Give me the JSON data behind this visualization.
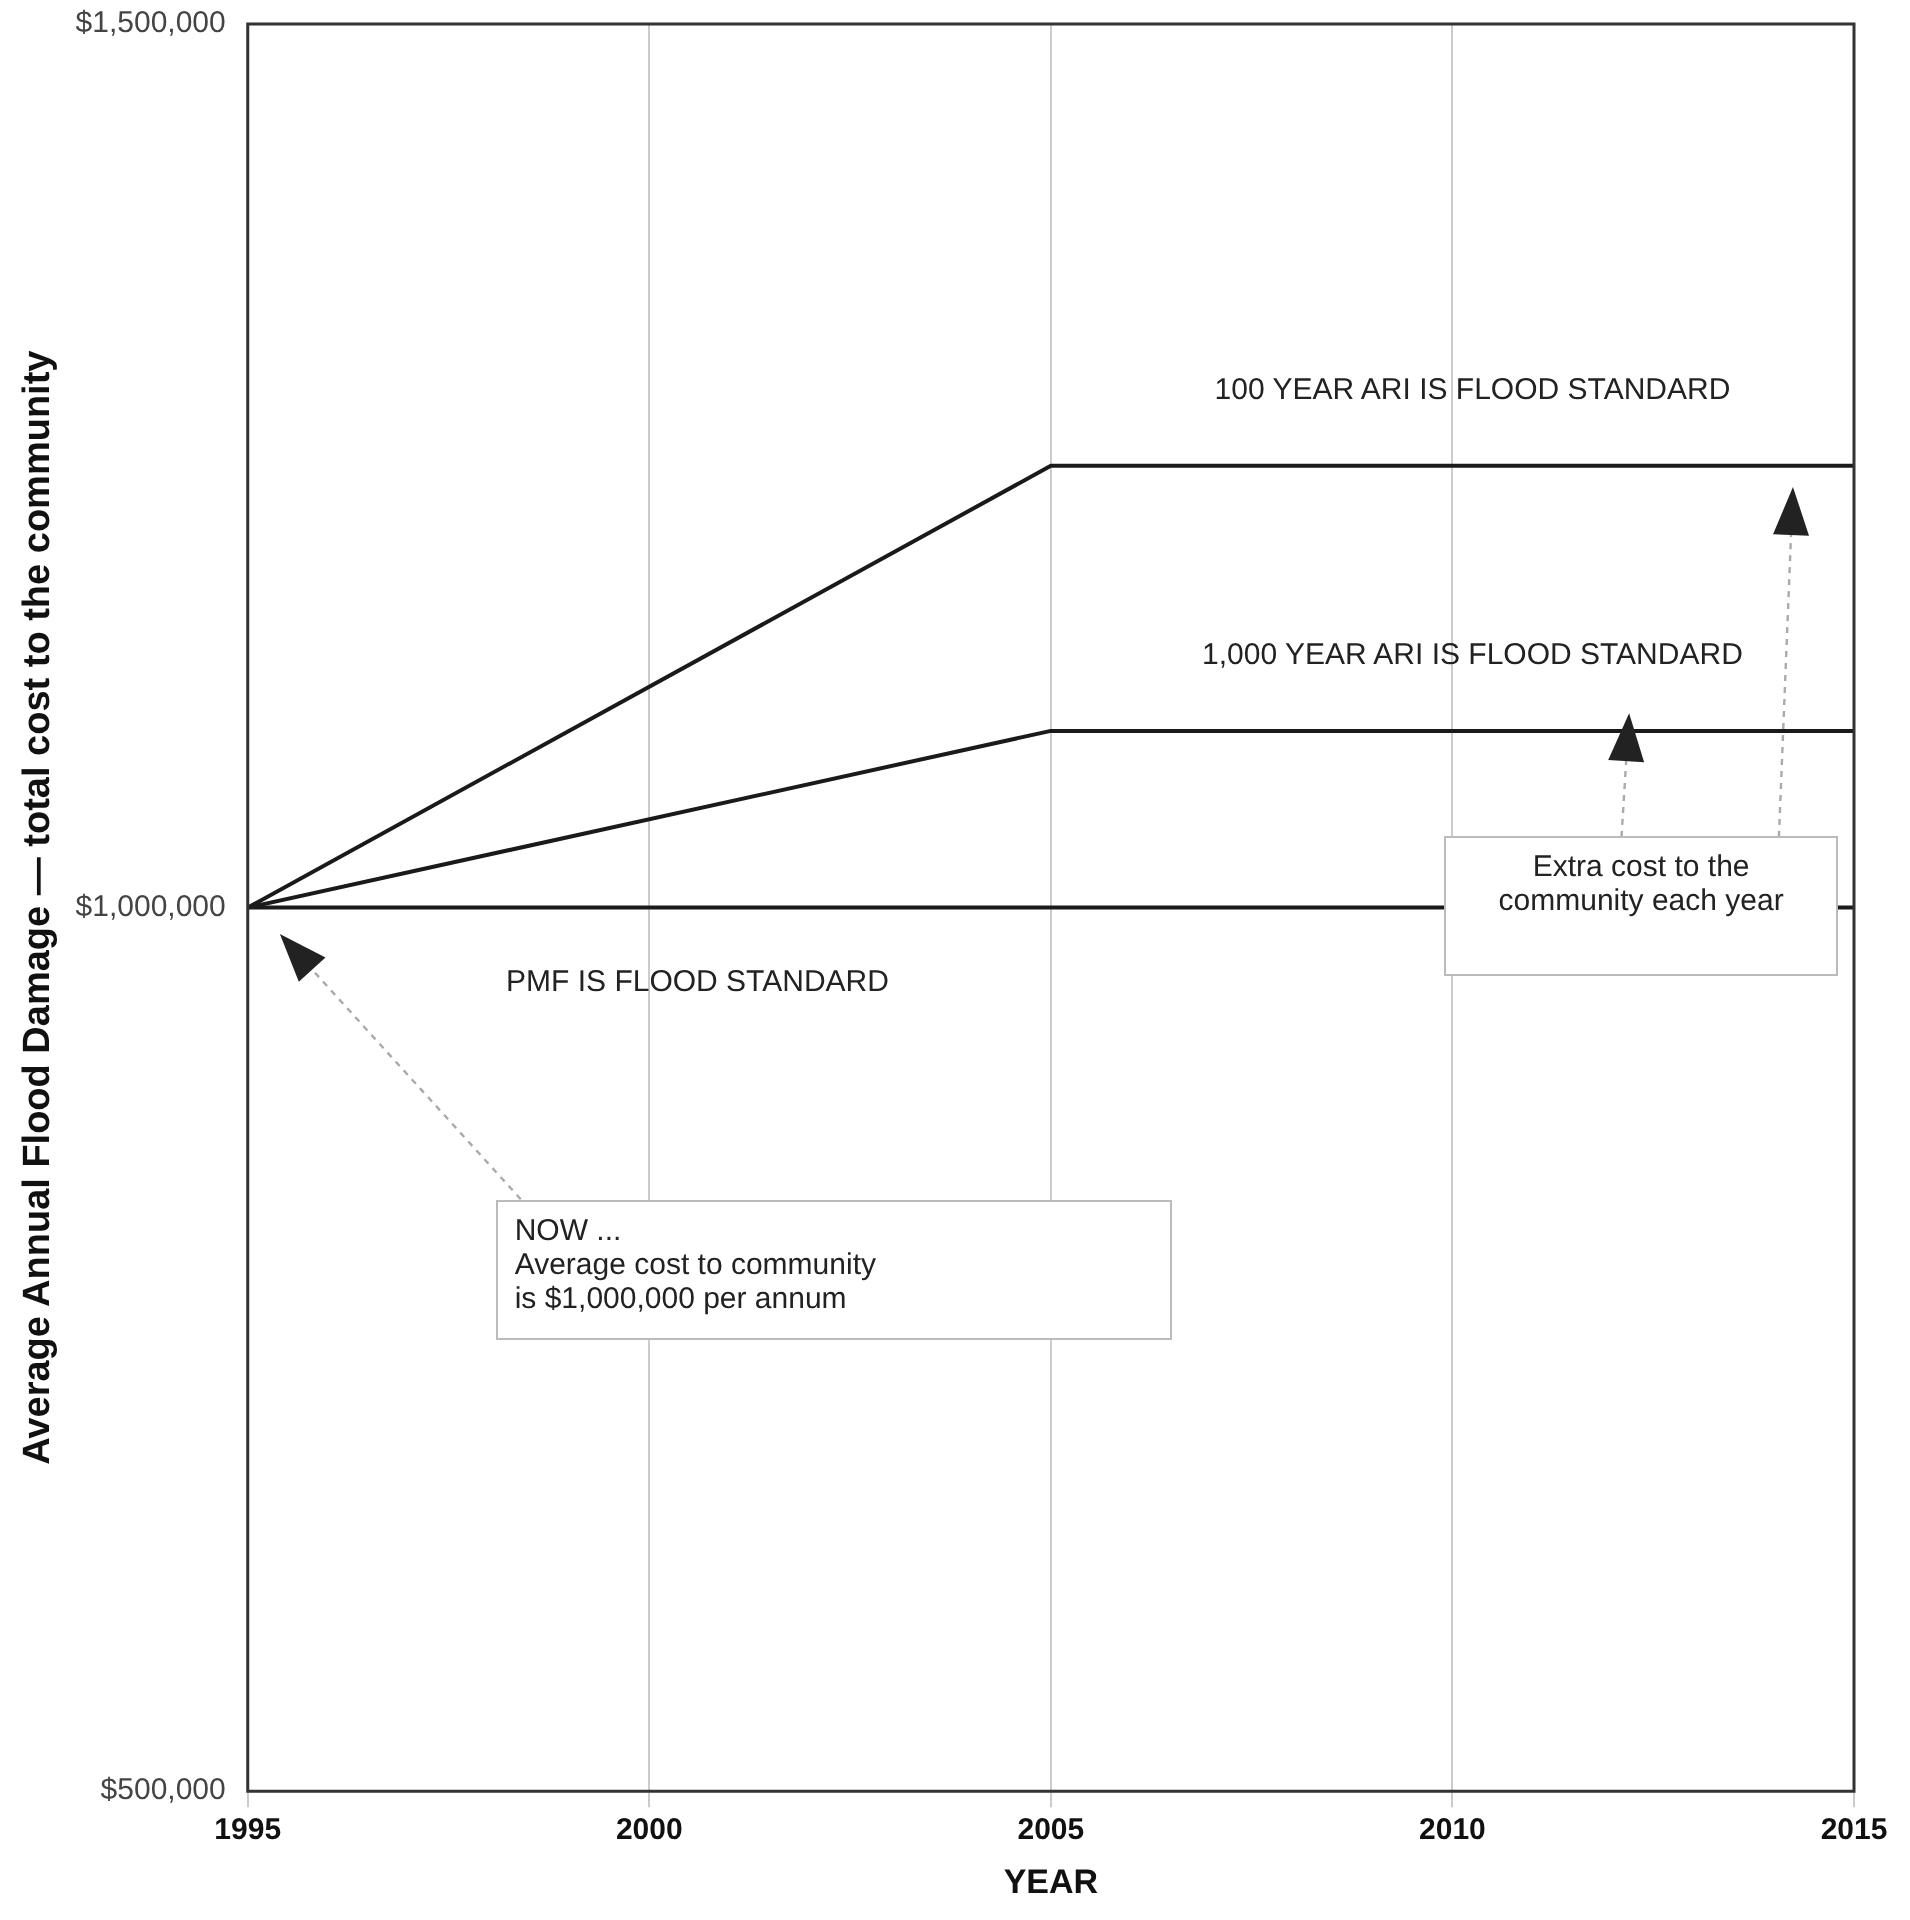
{
  "chart_data": {
    "type": "line",
    "x": [
      1995,
      2005,
      2015
    ],
    "series": [
      {
        "name": "100 YEAR ARI IS FLOOD STANDARD",
        "color": "#1a1a1a",
        "values": [
          1000000,
          1250000,
          1250000
        ]
      },
      {
        "name": "1,000 YEAR ARI IS FLOOD STANDARD",
        "color": "#1a1a1a",
        "values": [
          1000000,
          1100000,
          1100000
        ]
      },
      {
        "name": "PMF IS FLOOD STANDARD",
        "color": "#1a1a1a",
        "values": [
          1000000,
          1000000,
          1000000
        ]
      }
    ],
    "xlabel": "YEAR",
    "ylabel": "Average Annual Flood Damage — total cost to the community",
    "xlim": [
      1995,
      2015
    ],
    "xticks": [
      1995,
      2000,
      2005,
      2010,
      2015
    ],
    "ylim": [
      500000,
      1500000
    ],
    "yticks": [
      {
        "value": 500000,
        "label": "$500,000"
      },
      {
        "value": 1000000,
        "label": "$1,000,000"
      },
      {
        "value": 1500000,
        "label": "$1,500,000"
      }
    ],
    "grid": "x",
    "legend": false,
    "marker": "none",
    "line_style": "solid",
    "annotations": [
      "NOW ...\nAverage cost to community\nis $1,000,000 per annum",
      "Extra cost to the community each year"
    ]
  }
}
